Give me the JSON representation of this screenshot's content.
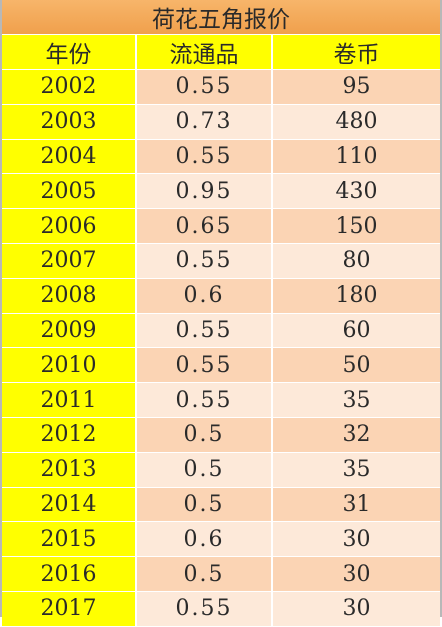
{
  "title": "荷花五角报价",
  "headers": {
    "year": "年份",
    "circulation": "流通品",
    "roll": "卷币"
  },
  "rows": [
    {
      "year": "2002",
      "circulation": "0.55",
      "roll": "95"
    },
    {
      "year": "2003",
      "circulation": "0.73",
      "roll": "480"
    },
    {
      "year": "2004",
      "circulation": "0.55",
      "roll": "110"
    },
    {
      "year": "2005",
      "circulation": "0.95",
      "roll": "430"
    },
    {
      "year": "2006",
      "circulation": "0.65",
      "roll": "150"
    },
    {
      "year": "2007",
      "circulation": "0.55",
      "roll": "80"
    },
    {
      "year": "2008",
      "circulation": "0.6",
      "roll": "180"
    },
    {
      "year": "2009",
      "circulation": "0.55",
      "roll": "60"
    },
    {
      "year": "2010",
      "circulation": "0.55",
      "roll": "50"
    },
    {
      "year": "2011",
      "circulation": "0.55",
      "roll": "35"
    },
    {
      "year": "2012",
      "circulation": "0.5",
      "roll": "32"
    },
    {
      "year": "2013",
      "circulation": "0.5",
      "roll": "35"
    },
    {
      "year": "2014",
      "circulation": "0.5",
      "roll": "31"
    },
    {
      "year": "2015",
      "circulation": "0.6",
      "roll": "30"
    },
    {
      "year": "2016",
      "circulation": "0.5",
      "roll": "30"
    },
    {
      "year": "2017",
      "circulation": "0.55",
      "roll": "30"
    }
  ]
}
